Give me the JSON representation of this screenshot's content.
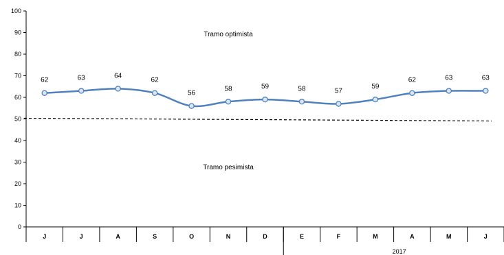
{
  "chart_data": {
    "type": "line",
    "categories": [
      "J",
      "J",
      "A",
      "S",
      "O",
      "N",
      "D",
      "E",
      "F",
      "M",
      "A",
      "M",
      "J"
    ],
    "series": [
      {
        "values": [
          62,
          63,
          64,
          62,
          56,
          58,
          59,
          58,
          57,
          59,
          62,
          63,
          63
        ],
        "color": "#4f81bd"
      }
    ],
    "data_labels": [
      "62",
      "63",
      "64",
      "62",
      "56",
      "58",
      "59",
      "58",
      "57",
      "59",
      "62",
      "63",
      "63"
    ],
    "ylim": [
      0,
      100
    ],
    "yticks": [
      0,
      10,
      20,
      30,
      40,
      50,
      60,
      70,
      80,
      90,
      100
    ],
    "ytick_labels": [
      "0",
      "10",
      "20",
      "30",
      "40",
      "50",
      "60",
      "70",
      "80",
      "90",
      "100"
    ],
    "threshold": {
      "value": 50,
      "style": "dashed",
      "color": "#000000"
    },
    "annotations": {
      "upper": "Tramo optimista",
      "lower": "Tramo pesimista"
    },
    "year_group": {
      "label": "2017",
      "start_index": 7,
      "end_index": 12
    },
    "grid": false,
    "marker_fill": "#dce6f2"
  }
}
